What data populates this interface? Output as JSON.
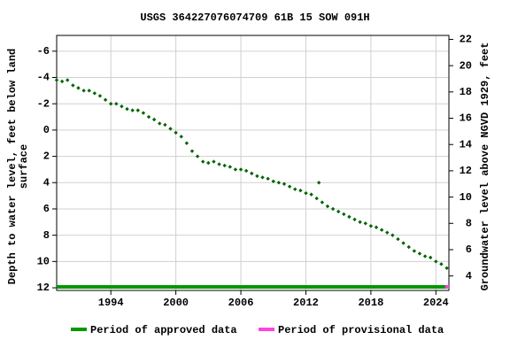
{
  "chart_data": {
    "type": "scatter",
    "title": "USGS 364227076074709 61B 15 SOW 091H",
    "ylabel": [
      "Depth to water level, feet below land",
      "surface"
    ],
    "y2label": "Groundwater level above NGVD 1929, feet",
    "xlim": [
      1989.0,
      2025.2
    ],
    "xticks": [
      1994,
      2000,
      2006,
      2012,
      2018,
      2024
    ],
    "ylim": [
      12.2,
      -7.2
    ],
    "yticks": [
      -6,
      -4,
      -2,
      0,
      2,
      4,
      6,
      8,
      10,
      12
    ],
    "y2lim": [
      2.9,
      22.3
    ],
    "y2ticks": [
      4,
      6,
      8,
      10,
      12,
      14,
      16,
      18,
      20,
      22
    ],
    "grid": true,
    "series": [
      {
        "name": "Depth to water level",
        "color": "#006400",
        "x": [
          1989.0,
          1989.5,
          1990.0,
          1990.5,
          1991.0,
          1991.5,
          1992.0,
          1992.5,
          1993.0,
          1993.5,
          1994.0,
          1994.5,
          1995.0,
          1995.5,
          1996.0,
          1996.5,
          1997.0,
          1997.5,
          1998.0,
          1998.5,
          1999.0,
          1999.5,
          2000.0,
          2000.5,
          2001.0,
          2001.5,
          2002.0,
          2002.5,
          2003.0,
          2003.5,
          2004.0,
          2004.5,
          2005.0,
          2005.5,
          2006.0,
          2006.5,
          2007.0,
          2007.5,
          2008.0,
          2008.5,
          2009.0,
          2009.5,
          2010.0,
          2010.5,
          2011.0,
          2011.5,
          2012.0,
          2012.5,
          2013.0,
          2013.2,
          2013.5,
          2014.0,
          2014.5,
          2015.0,
          2015.5,
          2016.0,
          2016.5,
          2017.0,
          2017.5,
          2018.0,
          2018.5,
          2019.0,
          2019.5,
          2020.0,
          2020.5,
          2021.0,
          2021.5,
          2022.0,
          2022.5,
          2023.0,
          2023.5,
          2024.0,
          2024.5,
          2025.0
        ],
        "values": [
          -3.8,
          -3.7,
          -3.8,
          -3.4,
          -3.2,
          -3.0,
          -3.0,
          -2.8,
          -2.6,
          -2.3,
          -2.0,
          -2.0,
          -1.8,
          -1.6,
          -1.5,
          -1.5,
          -1.3,
          -1.0,
          -0.8,
          -0.5,
          -0.4,
          -0.1,
          0.2,
          0.5,
          1.0,
          1.6,
          2.0,
          2.4,
          2.5,
          2.4,
          2.6,
          2.7,
          2.8,
          3.0,
          3.0,
          3.1,
          3.3,
          3.5,
          3.6,
          3.7,
          3.9,
          4.0,
          4.1,
          4.3,
          4.5,
          4.6,
          4.8,
          4.9,
          5.2,
          4.0,
          5.5,
          5.8,
          6.0,
          6.2,
          6.4,
          6.6,
          6.8,
          7.0,
          7.1,
          7.3,
          7.4,
          7.6,
          7.8,
          8.0,
          8.3,
          8.6,
          8.9,
          9.2,
          9.4,
          9.6,
          9.7,
          10.0,
          10.2,
          10.5
        ]
      }
    ],
    "legend": [
      {
        "name": "Period of approved data",
        "color": "#009900"
      },
      {
        "name": "Period of provisional data",
        "color": "#ff44dd"
      }
    ]
  }
}
